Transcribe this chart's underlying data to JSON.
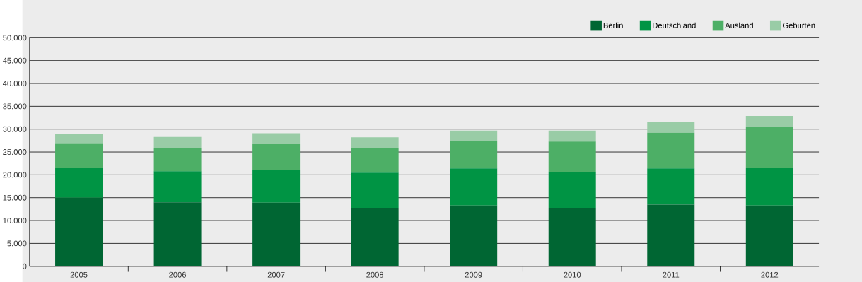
{
  "chart_data": {
    "type": "bar",
    "stacked": true,
    "categories": [
      "2005",
      "2006",
      "2007",
      "2008",
      "2009",
      "2010",
      "2011",
      "2012"
    ],
    "series": [
      {
        "name": "Berlin",
        "color": "#006633",
        "values": [
          15000,
          14000,
          13900,
          12800,
          13300,
          12700,
          13500,
          13300
        ]
      },
      {
        "name": "Deutschland",
        "color": "#009444",
        "values": [
          6500,
          6800,
          7200,
          7700,
          8100,
          7900,
          7900,
          8200
        ]
      },
      {
        "name": "Ausland",
        "color": "#4daf66",
        "values": [
          5300,
          5100,
          5600,
          5300,
          6000,
          6700,
          7800,
          8900
        ]
      },
      {
        "name": "Geburten",
        "color": "#99cca6",
        "values": [
          2200,
          2400,
          2400,
          2400,
          2300,
          2400,
          2400,
          2500
        ]
      }
    ],
    "ylim": [
      0,
      50000
    ],
    "yticks": [
      0,
      {
        "value": 5000,
        "label": "5.000"
      },
      {
        "value": 10000,
        "label": "10.000"
      },
      {
        "value": 15000,
        "label": "15.000"
      },
      {
        "value": 20000,
        "label": "20.000"
      },
      {
        "value": 25000,
        "label": "25.000"
      },
      {
        "value": 30000,
        "label": "30.000"
      },
      {
        "value": 35000,
        "label": "35.000"
      },
      {
        "value": 40000,
        "label": "40.000"
      },
      {
        "value": 45000,
        "label": "45.000"
      },
      {
        "value": 50000,
        "label": "50.000"
      }
    ],
    "grid": "y",
    "legend": "top right"
  }
}
